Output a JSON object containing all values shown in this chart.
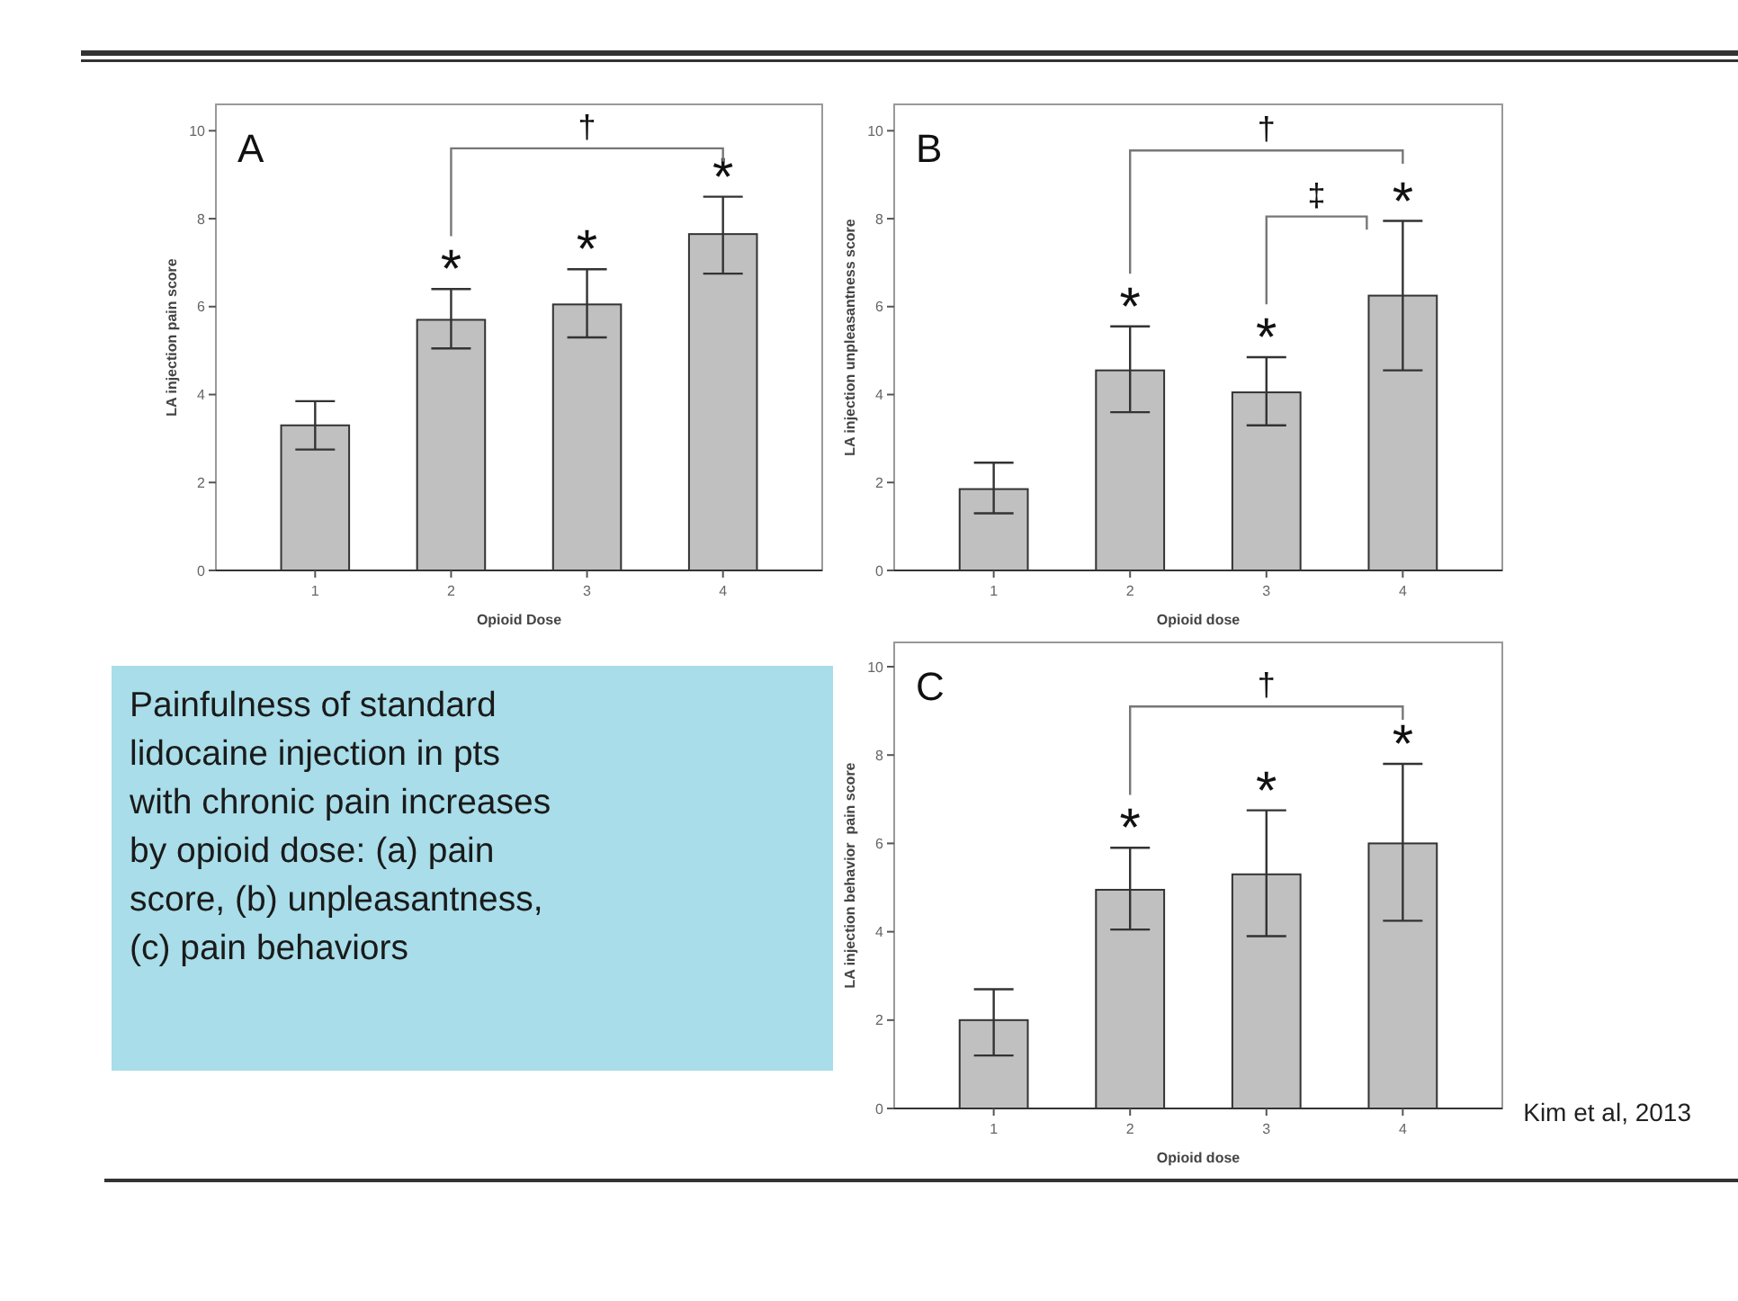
{
  "chart_data": [
    {
      "type": "bar",
      "title": "A",
      "xlabel": "Opioid Dose",
      "ylabel": "LA injection pain score",
      "categories": [
        "1",
        "2",
        "3",
        "4"
      ],
      "values": [
        3.3,
        5.7,
        6.05,
        7.65
      ],
      "errors": [
        [
          2.75,
          3.85
        ],
        [
          5.05,
          6.4
        ],
        [
          5.3,
          6.85
        ],
        [
          6.75,
          8.5
        ]
      ],
      "color": "#c0c0c0",
      "ylim": [
        0,
        10.6
      ],
      "yticks": [
        0,
        2,
        4,
        6,
        8,
        10
      ],
      "annotations": [
        {
          "text": "*",
          "x": "2",
          "y": 6.4
        },
        {
          "text": "*",
          "x": "3",
          "y": 6.85
        },
        {
          "text": "*",
          "x": "4",
          "y": 8.5
        },
        "†"
      ]
    },
    {
      "type": "bar",
      "title": "B",
      "xlabel": "Opioid dose",
      "ylabel": "LA injection unpleasantness score",
      "categories": [
        "1",
        "2",
        "3",
        "4"
      ],
      "values": [
        1.85,
        4.55,
        4.05,
        6.25
      ],
      "errors": [
        [
          1.3,
          2.45
        ],
        [
          3.6,
          5.55
        ],
        [
          3.3,
          4.85
        ],
        [
          4.55,
          7.95
        ]
      ],
      "color": "#c0c0c0",
      "ylim": [
        0,
        10.6
      ],
      "yticks": [
        0,
        2,
        4,
        6,
        8,
        10
      ],
      "annotations": [
        {
          "text": "*",
          "x": "2",
          "y": 5.55
        },
        {
          "text": "*",
          "x": "3",
          "y": 4.85
        },
        {
          "text": "*",
          "x": "4",
          "y": 7.95
        },
        "†",
        "‡"
      ]
    },
    {
      "type": "bar",
      "title": "C",
      "xlabel": "Opioid dose",
      "ylabel": "LA injection behavior  pain score",
      "categories": [
        "1",
        "2",
        "3",
        "4"
      ],
      "values": [
        2.0,
        4.95,
        5.3,
        6.0
      ],
      "errors": [
        [
          1.2,
          2.7
        ],
        [
          4.05,
          5.9
        ],
        [
          3.9,
          6.75
        ],
        [
          4.25,
          7.8
        ]
      ],
      "color": "#c0c0c0",
      "ylim": [
        0,
        10.55
      ],
      "yticks": [
        0,
        2,
        4,
        6,
        8,
        10
      ],
      "annotations": [
        {
          "text": "*",
          "x": "2",
          "y": 5.9
        },
        {
          "text": "*",
          "x": "3",
          "y": 6.75
        },
        {
          "text": "*",
          "x": "4",
          "y": 7.8
        },
        "†"
      ]
    },
    {
      "type": "other",
      "annotations": [
        "Painfulness of standard lidocaine injection in pts with chronic pain increases by opioid dose: (a) pain score, (b) unpleasantness, (c) pain behaviors",
        "Kim et al, 2013"
      ]
    }
  ]
}
